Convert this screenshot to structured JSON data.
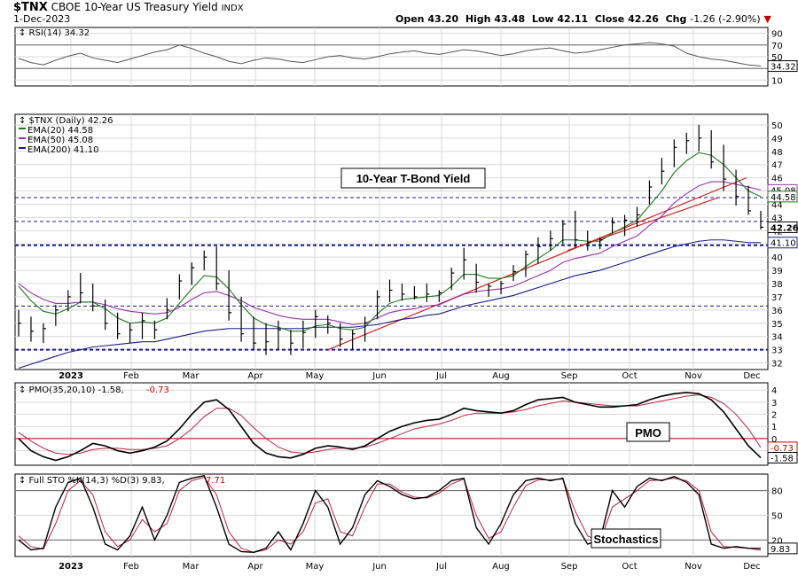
{
  "header": {
    "symbol": "$TNX",
    "description": "CBOE 10-Year US Treasury Yield",
    "exchange": "INDX",
    "date": "1-Dec-2023",
    "open_label": "Open",
    "open": "43.20",
    "high_label": "High",
    "high": "43.48",
    "low_label": "Low",
    "low": "42.11",
    "close_label": "Close",
    "close": "42.26",
    "chg_label": "Chg",
    "chg": "-1.26 (-2.90%)",
    "chg_icon": "down-triangle-icon"
  },
  "months": [
    "2023",
    "Feb",
    "Mar",
    "Apr",
    "May",
    "Jun",
    "Jul",
    "Aug",
    "Sep",
    "Oct",
    "Nov",
    "Dec"
  ],
  "colors": {
    "price": "#000000",
    "ema20": "#1a7a1a",
    "ema50": "#9b30b0",
    "ema200": "#1a1a8c",
    "trend": "#d42020",
    "signal": "#c02040",
    "neg": "#cc0000"
  },
  "chart_data": [
    {
      "type": "line",
      "panel": "rsi",
      "legend": "RSI(14) 34.32",
      "last_label": "34.32",
      "ylim": [
        0,
        100
      ],
      "yticks": [
        10,
        30,
        50,
        70,
        90
      ],
      "levels": [
        70,
        30
      ],
      "series": [
        {
          "name": "RSI(14)",
          "values": [
            47,
            40,
            36,
            44,
            51,
            56,
            48,
            44,
            40,
            46,
            52,
            58,
            62,
            70,
            64,
            56,
            50,
            42,
            38,
            44,
            48,
            46,
            42,
            40,
            45,
            50,
            52,
            48,
            46,
            50,
            55,
            58,
            60,
            56,
            54,
            58,
            62,
            60,
            56,
            52,
            55,
            60,
            63,
            65,
            60,
            56,
            58,
            62,
            66,
            70,
            72,
            74,
            72,
            68,
            56,
            50,
            46,
            44,
            40,
            36,
            34
          ]
        }
      ]
    },
    {
      "type": "candlestick",
      "panel": "price",
      "ylim": [
        31.5,
        50.8
      ],
      "yticks": [
        32,
        33,
        34,
        35,
        36,
        37,
        38,
        39,
        40,
        41,
        42,
        43,
        44,
        45,
        46,
        47,
        48,
        49,
        50
      ],
      "legend": [
        {
          "name": "$TNX (Daily)",
          "value": "42.26"
        },
        {
          "name": "EMA(20)",
          "value": "44.58"
        },
        {
          "name": "EMA(50)",
          "value": "45.08"
        },
        {
          "name": "EMA(200)",
          "value": "41.10"
        }
      ],
      "price_labels": [
        "45.08",
        "44.58",
        "42.26",
        "41.10"
      ],
      "annotation": "10-Year T-Bond Yield",
      "horizontal_levels": [
        44.5,
        42.7,
        40.9,
        36.3,
        33.0
      ],
      "trendlines": [
        {
          "from": [
            "2023-05-12",
            33.0
          ],
          "to": [
            "2023-11-15",
            46.0
          ]
        },
        {
          "from": [
            "2023-09-01",
            40.5
          ],
          "to": [
            "2023-11-10",
            44.5
          ]
        }
      ],
      "ohlc_highs": [
        36.0,
        35.5,
        35.0,
        36.4,
        37.5,
        38.8,
        38.0,
        36.8,
        35.8,
        35.0,
        35.8,
        35.2,
        36.9,
        38.7,
        39.6,
        40.5,
        40.8,
        39.0,
        37.0,
        35.5,
        35.0,
        35.2,
        34.5,
        35.2,
        36.0,
        35.6,
        35.0,
        34.5,
        35.5,
        37.5,
        38.3,
        38.0,
        37.8,
        38.0,
        37.5,
        39.2,
        40.7,
        39.5,
        38.0,
        38.2,
        39.4,
        40.5,
        41.5,
        42.0,
        42.8,
        43.5,
        42.0,
        41.5,
        43.0,
        43.2,
        43.8,
        45.8,
        47.5,
        48.9,
        49.4,
        50.0,
        49.6,
        48.5,
        46.6,
        45.4,
        43.5
      ],
      "ohlc_lows": [
        34.0,
        33.6,
        33.5,
        34.8,
        35.9,
        36.5,
        35.9,
        34.5,
        33.8,
        33.5,
        33.8,
        33.8,
        35.3,
        36.8,
        37.9,
        39.0,
        37.5,
        35.2,
        33.6,
        33.0,
        32.6,
        33.0,
        32.6,
        33.1,
        33.9,
        34.2,
        33.2,
        33.0,
        33.6,
        35.3,
        36.6,
        36.7,
        36.8,
        36.6,
        36.6,
        37.5,
        38.3,
        37.3,
        37.0,
        37.2,
        38.2,
        38.5,
        39.5,
        40.5,
        41.0,
        40.7,
        40.5,
        40.6,
        41.8,
        41.6,
        42.3,
        44.0,
        45.5,
        46.8,
        47.8,
        48.0,
        46.7,
        45.0,
        43.9,
        43.2,
        42.1
      ],
      "ohlc_closes": [
        35.0,
        34.4,
        34.6,
        36.0,
        37.0,
        37.3,
        36.3,
        35.0,
        34.2,
        34.5,
        35.2,
        34.5,
        36.0,
        38.2,
        39.2,
        40.0,
        38.0,
        35.8,
        34.2,
        33.5,
        33.6,
        34.5,
        33.5,
        34.3,
        35.5,
        35.0,
        33.8,
        34.2,
        35.0,
        37.0,
        37.5,
        37.2,
        37.0,
        37.2,
        37.3,
        38.8,
        39.8,
        38.1,
        37.8,
        38.0,
        38.9,
        40.2,
        40.8,
        41.4,
        42.5,
        41.3,
        41.1,
        41.3,
        42.6,
        42.8,
        43.2,
        45.3,
        46.5,
        48.3,
        48.8,
        49.0,
        47.2,
        45.9,
        44.6,
        43.5,
        42.26
      ],
      "ema20": [
        37.8,
        36.7,
        35.9,
        35.7,
        36.1,
        36.6,
        36.6,
        36.1,
        35.4,
        35.0,
        35.1,
        35.0,
        35.4,
        36.5,
        37.6,
        38.6,
        38.5,
        37.6,
        36.4,
        35.4,
        34.9,
        34.7,
        34.4,
        34.4,
        34.8,
        34.9,
        34.6,
        34.5,
        34.7,
        35.7,
        36.5,
        36.8,
        36.9,
        37.0,
        37.1,
        37.8,
        38.7,
        38.7,
        38.4,
        38.4,
        38.6,
        39.3,
        39.9,
        40.5,
        41.3,
        41.3,
        41.2,
        41.2,
        41.8,
        42.3,
        42.8,
        43.9,
        45.0,
        46.4,
        47.3,
        47.9,
        47.7,
        47.0,
        46.0,
        45.0,
        44.58
      ],
      "ema50": [
        38.0,
        37.3,
        36.8,
        36.5,
        36.5,
        36.6,
        36.6,
        36.4,
        36.1,
        35.9,
        35.8,
        35.7,
        35.8,
        36.2,
        36.8,
        37.3,
        37.4,
        37.1,
        36.7,
        36.2,
        35.9,
        35.6,
        35.4,
        35.3,
        35.3,
        35.3,
        35.1,
        34.9,
        35.0,
        35.4,
        35.8,
        36.0,
        36.1,
        36.3,
        36.4,
        36.8,
        37.2,
        37.4,
        37.5,
        37.6,
        37.8,
        38.2,
        38.6,
        39.0,
        39.6,
        39.9,
        40.1,
        40.3,
        40.8,
        41.2,
        41.6,
        42.4,
        43.1,
        44.1,
        44.8,
        45.4,
        45.7,
        45.7,
        45.5,
        45.3,
        45.08
      ],
      "ema200": [
        31.6,
        31.9,
        32.2,
        32.5,
        32.8,
        33.0,
        33.2,
        33.3,
        33.4,
        33.5,
        33.6,
        33.6,
        33.8,
        34.0,
        34.2,
        34.4,
        34.5,
        34.6,
        34.6,
        34.6,
        34.6,
        34.6,
        34.6,
        34.6,
        34.7,
        34.7,
        34.7,
        34.7,
        34.8,
        34.9,
        35.1,
        35.3,
        35.4,
        35.6,
        35.7,
        36.0,
        36.3,
        36.5,
        36.7,
        36.9,
        37.1,
        37.4,
        37.7,
        38.0,
        38.3,
        38.6,
        38.8,
        39.0,
        39.3,
        39.6,
        39.9,
        40.2,
        40.5,
        40.8,
        41.0,
        41.2,
        41.3,
        41.3,
        41.2,
        41.1,
        41.1
      ]
    },
    {
      "type": "line",
      "panel": "pmo",
      "legend_name": "PMO(35,20,10)",
      "legend_values": [
        "-1.58",
        "-0.73"
      ],
      "annotation": "PMO",
      "ylim": [
        -2.2,
        4.6
      ],
      "yticks": [
        -1,
        0,
        1,
        2,
        3,
        4
      ],
      "last_labels": [
        "-0.73",
        "-1.58"
      ],
      "series": [
        {
          "name": "PMO",
          "values": [
            0.0,
            -1.0,
            -1.5,
            -1.8,
            -1.5,
            -1.0,
            -0.4,
            -0.6,
            -1.0,
            -1.2,
            -1.0,
            -0.7,
            -0.2,
            0.8,
            2.0,
            3.0,
            3.2,
            2.4,
            1.0,
            -0.4,
            -1.2,
            -1.5,
            -1.6,
            -1.3,
            -0.8,
            -0.6,
            -0.7,
            -0.9,
            -0.6,
            0.0,
            0.6,
            1.0,
            1.3,
            1.5,
            1.6,
            2.0,
            2.5,
            2.3,
            2.2,
            2.1,
            2.3,
            2.8,
            3.2,
            3.3,
            3.4,
            3.0,
            2.8,
            2.6,
            2.6,
            2.7,
            2.8,
            3.2,
            3.5,
            3.7,
            3.8,
            3.7,
            3.2,
            2.2,
            0.8,
            -0.6,
            -1.58
          ]
        },
        {
          "name": "Signal",
          "values": [
            0.5,
            -0.2,
            -0.8,
            -1.2,
            -1.3,
            -1.2,
            -0.9,
            -0.8,
            -0.8,
            -0.9,
            -0.9,
            -0.8,
            -0.6,
            0.0,
            0.8,
            1.8,
            2.5,
            2.5,
            1.9,
            0.9,
            0.0,
            -0.7,
            -1.1,
            -1.2,
            -1.1,
            -0.9,
            -0.8,
            -0.8,
            -0.7,
            -0.4,
            0.0,
            0.4,
            0.8,
            1.0,
            1.2,
            1.5,
            1.9,
            2.1,
            2.1,
            2.1,
            2.2,
            2.4,
            2.7,
            2.9,
            3.1,
            3.0,
            2.9,
            2.8,
            2.7,
            2.7,
            2.7,
            2.9,
            3.1,
            3.3,
            3.5,
            3.6,
            3.4,
            2.9,
            2.0,
            0.8,
            -0.73
          ]
        }
      ]
    },
    {
      "type": "line",
      "panel": "sto",
      "legend_name": "Full STO %K(14,3) %D(3)",
      "legend_values": [
        "9.83",
        "7.71"
      ],
      "annotation": "Stochastics",
      "ylim": [
        0,
        100
      ],
      "yticks": [
        20,
        50,
        80
      ],
      "levels": [
        80,
        20
      ],
      "last_label": "9.83",
      "series": [
        {
          "name": "%K",
          "values": [
            20,
            8,
            10,
            60,
            90,
            95,
            60,
            15,
            8,
            25,
            60,
            20,
            50,
            90,
            95,
            98,
            60,
            15,
            6,
            5,
            10,
            30,
            8,
            40,
            80,
            60,
            15,
            35,
            75,
            92,
            85,
            75,
            70,
            72,
            80,
            92,
            95,
            35,
            15,
            40,
            75,
            92,
            95,
            92,
            95,
            40,
            15,
            20,
            80,
            60,
            85,
            95,
            92,
            97,
            90,
            75,
            15,
            10,
            12,
            10,
            9.83
          ]
        },
        {
          "name": "%D",
          "values": [
            25,
            12,
            9,
            40,
            80,
            92,
            75,
            30,
            12,
            20,
            45,
            30,
            40,
            80,
            92,
            96,
            75,
            30,
            10,
            5,
            8,
            20,
            15,
            30,
            65,
            70,
            30,
            25,
            60,
            88,
            88,
            78,
            72,
            71,
            77,
            88,
            94,
            50,
            22,
            30,
            60,
            86,
            93,
            93,
            94,
            55,
            25,
            18,
            60,
            70,
            80,
            92,
            93,
            95,
            92,
            80,
            30,
            12,
            11,
            10,
            7.71
          ]
        }
      ]
    }
  ]
}
